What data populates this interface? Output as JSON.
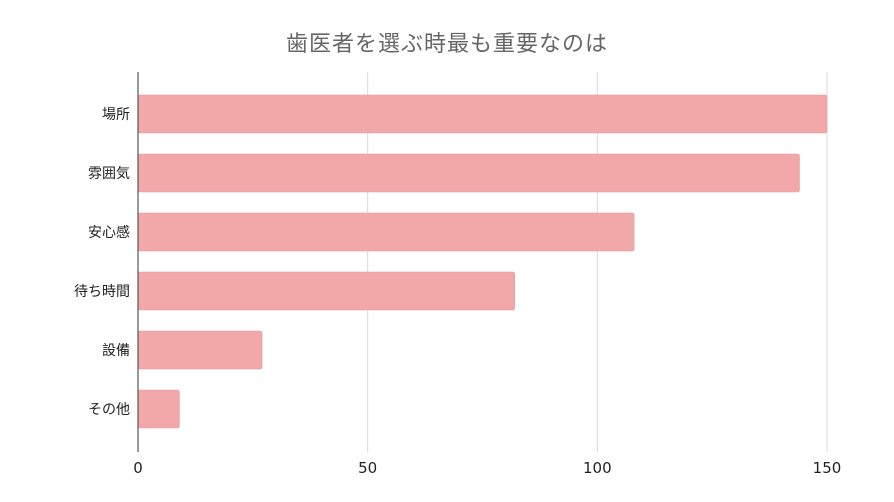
{
  "chart_data": {
    "type": "bar",
    "orientation": "horizontal",
    "title": "歯医者を選ぶ時最も重要なのは",
    "categories": [
      "場所",
      "雰囲気",
      "安心感",
      "待ち時間",
      "設備",
      "その他"
    ],
    "values": [
      150,
      144,
      108,
      82,
      27,
      9
    ],
    "xlim": [
      0,
      150
    ],
    "x_ticks": [
      0,
      50,
      100,
      150
    ],
    "x_tick_labels": [
      "0",
      "50",
      "100",
      "150"
    ],
    "xlabel": "",
    "ylabel": "",
    "grid": true,
    "legend": "none",
    "colors": {
      "bar": "#f2a8a9",
      "bar_stroke": "#e89596",
      "grid": "#d9d9d9",
      "axis": "#555555"
    }
  }
}
